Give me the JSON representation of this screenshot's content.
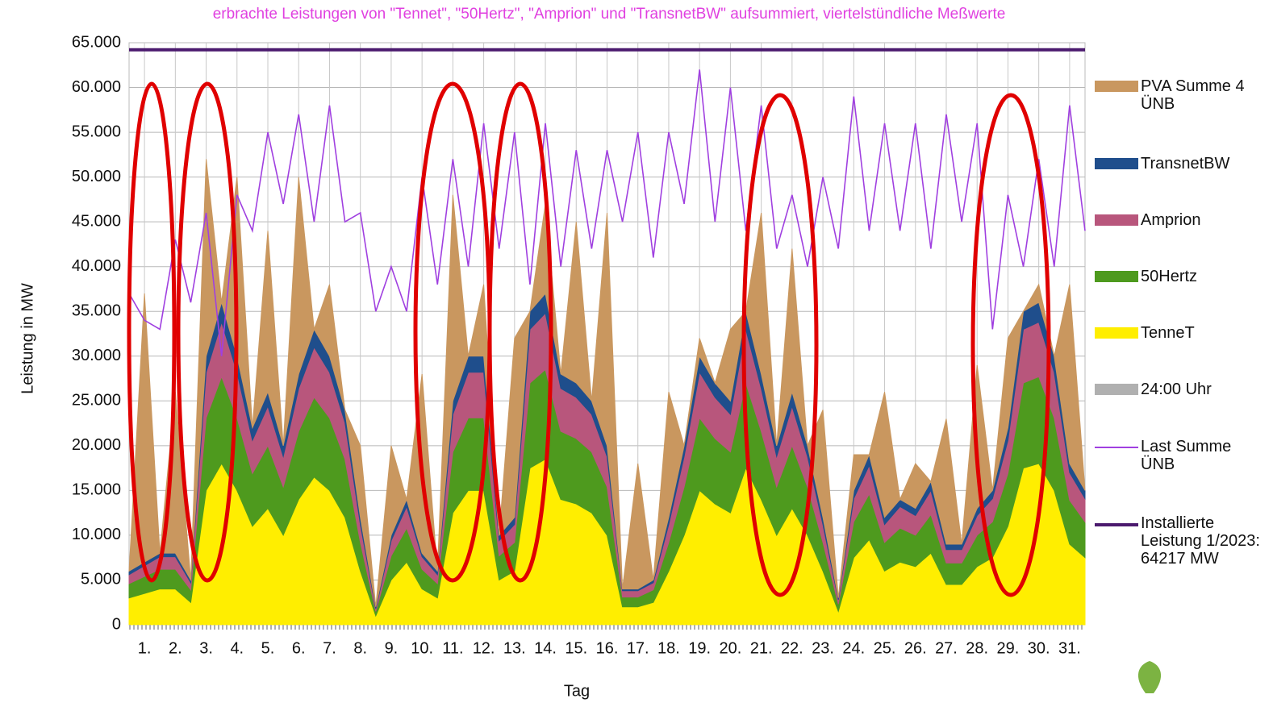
{
  "chart_data": {
    "type": "stacked-area",
    "title": "erbrachte Leistungen von \"Tennet\", \"50Hertz\", \"Amprion\" und \"TransnetBW\" aufsummiert, viertelstündliche Meßwerte",
    "y_label": "Leistung in MW",
    "x_label": "Tag",
    "x": [
      0.5,
      1,
      1.5,
      2,
      2.5,
      3,
      3.5,
      4,
      4.5,
      5,
      5.5,
      6,
      6.5,
      7,
      7.5,
      8,
      8.5,
      9,
      9.5,
      10,
      10.5,
      11,
      11.5,
      12,
      12.5,
      13,
      13.5,
      14,
      14.5,
      15,
      15.5,
      16,
      16.5,
      17,
      17.5,
      18,
      18.5,
      19,
      19.5,
      20,
      20.5,
      21,
      21.5,
      22,
      22.5,
      23,
      23.5,
      24,
      24.5,
      25,
      25.5,
      26,
      26.5,
      27,
      27.5,
      28,
      28.5,
      29,
      29.5,
      30,
      30.5,
      31,
      31.5
    ],
    "xlim": [
      0.5,
      31.5
    ],
    "xticks": [
      {
        "value": 1,
        "label": "1."
      },
      {
        "value": 2,
        "label": "2."
      },
      {
        "value": 3,
        "label": "3."
      },
      {
        "value": 4,
        "label": "4."
      },
      {
        "value": 5,
        "label": "5."
      },
      {
        "value": 6,
        "label": "6."
      },
      {
        "value": 7,
        "label": "7."
      },
      {
        "value": 8,
        "label": "8."
      },
      {
        "value": 9,
        "label": "9."
      },
      {
        "value": 10,
        "label": "10."
      },
      {
        "value": 11,
        "label": "11."
      },
      {
        "value": 12,
        "label": "12."
      },
      {
        "value": 13,
        "label": "13."
      },
      {
        "value": 14,
        "label": "14."
      },
      {
        "value": 15,
        "label": "15."
      },
      {
        "value": 16,
        "label": "16."
      },
      {
        "value": 17,
        "label": "17."
      },
      {
        "value": 18,
        "label": "18."
      },
      {
        "value": 19,
        "label": "19."
      },
      {
        "value": 20,
        "label": "20."
      },
      {
        "value": 21,
        "label": "21."
      },
      {
        "value": 22,
        "label": "22."
      },
      {
        "value": 23,
        "label": "23."
      },
      {
        "value": 24,
        "label": "24."
      },
      {
        "value": 25,
        "label": "25."
      },
      {
        "value": 26,
        "label": "26."
      },
      {
        "value": 27,
        "label": "27."
      },
      {
        "value": 28,
        "label": "28."
      },
      {
        "value": 29,
        "label": "29."
      },
      {
        "value": 30,
        "label": "30."
      },
      {
        "value": 31,
        "label": "31."
      }
    ],
    "ylim": [
      0,
      65000
    ],
    "yticks": [
      0,
      {
        "value": 5000,
        "label": "5.000"
      },
      {
        "value": 10000,
        "label": "10.000"
      },
      {
        "value": 15000,
        "label": "15.000"
      },
      {
        "value": 20000,
        "label": "20.000"
      },
      {
        "value": 25000,
        "label": "25.000"
      },
      {
        "value": 30000,
        "label": "30.000"
      },
      {
        "value": 35000,
        "label": "35.000"
      },
      {
        "value": 40000,
        "label": "40.000"
      },
      {
        "value": 45000,
        "label": "45.000"
      },
      {
        "value": 50000,
        "label": "50.000"
      },
      {
        "value": 55000,
        "label": "55.000"
      },
      {
        "value": 60000,
        "label": "60.000"
      },
      {
        "value": 65000,
        "label": "65.000"
      }
    ],
    "grid": true,
    "series": [
      {
        "name": "PVA Summe 4 ÜNB",
        "type": "area",
        "color": "#c9975f",
        "values": [
          0,
          30000,
          0,
          18000,
          0,
          22000,
          0,
          20000,
          0,
          18000,
          0,
          22000,
          0,
          8000,
          0,
          8000,
          0,
          10000,
          0,
          20000,
          0,
          23000,
          0,
          8000,
          0,
          20000,
          0,
          10000,
          0,
          18000,
          0,
          26000,
          0,
          14000,
          0,
          14000,
          0,
          2000,
          0,
          8000,
          0,
          18000,
          0,
          16000,
          0,
          12000,
          0,
          4000,
          0,
          14000,
          0,
          5000,
          0,
          14000,
          0,
          16000,
          0,
          10000,
          0,
          2000,
          0,
          20000,
          0
        ]
      },
      {
        "name": "TransnetBW",
        "type": "area",
        "color": "#1f4e8c",
        "values": [
          400,
          400,
          400,
          400,
          300,
          1800,
          2200,
          1800,
          1400,
          1600,
          1200,
          1600,
          2000,
          1800,
          1400,
          800,
          200,
          600,
          800,
          400,
          400,
          1500,
          1800,
          1800,
          600,
          800,
          2000,
          2200,
          1600,
          1600,
          1500,
          1200,
          200,
          200,
          300,
          800,
          1200,
          1800,
          1600,
          1500,
          2000,
          1600,
          1200,
          1600,
          1200,
          800,
          200,
          900,
          1200,
          800,
          800,
          800,
          1000,
          600,
          600,
          800,
          900,
          1400,
          2000,
          2200,
          1800,
          1000,
          900
        ]
      },
      {
        "name": "Amprion",
        "type": "area",
        "color": "#b8567c",
        "values": [
          1000,
          1200,
          1400,
          1400,
          800,
          5100,
          6100,
          5100,
          3700,
          4400,
          3400,
          4800,
          5600,
          5100,
          4100,
          2000,
          300,
          1700,
          2400,
          1400,
          1000,
          4200,
          5100,
          5100,
          1700,
          2000,
          6000,
          6300,
          4800,
          4600,
          4200,
          3400,
          700,
          700,
          800,
          2000,
          3400,
          5100,
          4600,
          4200,
          6000,
          4800,
          3400,
          4400,
          3400,
          2000,
          500,
          2600,
          3200,
          2000,
          2400,
          2200,
          2700,
          1500,
          1500,
          2200,
          2600,
          3700,
          6000,
          6100,
          5100,
          3100,
          2600
        ]
      },
      {
        "name": "50Hertz",
        "type": "area",
        "color": "#4e9a1e",
        "values": [
          1600,
          1900,
          2200,
          2200,
          1400,
          8100,
          9700,
          8100,
          5900,
          7000,
          5400,
          7600,
          8900,
          8100,
          6500,
          3200,
          500,
          2700,
          3800,
          2200,
          1600,
          6800,
          8100,
          8100,
          2700,
          3200,
          9500,
          10000,
          7600,
          7300,
          6800,
          5400,
          1100,
          1100,
          1400,
          3200,
          5400,
          8100,
          7300,
          6800,
          9500,
          7600,
          5400,
          7000,
          5400,
          3200,
          800,
          4000,
          5100,
          3200,
          3800,
          3500,
          4300,
          2400,
          2400,
          3500,
          4000,
          5900,
          9500,
          9700,
          8100,
          4900,
          4000
        ]
      },
      {
        "name": "TenneT",
        "type": "area",
        "color": "#ffee00",
        "values": [
          3000,
          3500,
          4000,
          4000,
          2500,
          15000,
          18000,
          15000,
          11000,
          13000,
          10000,
          14000,
          16500,
          15000,
          12000,
          6000,
          1000,
          5000,
          7000,
          4000,
          3000,
          12500,
          15000,
          15000,
          5000,
          6000,
          17500,
          18500,
          14000,
          13500,
          12500,
          10000,
          2000,
          2000,
          2500,
          6000,
          10000,
          15000,
          13500,
          12500,
          17500,
          14000,
          10000,
          13000,
          10000,
          6000,
          1500,
          7500,
          9500,
          6000,
          7000,
          6500,
          8000,
          4500,
          4500,
          6500,
          7500,
          11000,
          17500,
          18000,
          15000,
          9000,
          7500
        ]
      },
      {
        "name": "24:00 Uhr",
        "type": "marker",
        "color": "#b0b0b0"
      },
      {
        "name": "Last Summe ÜNB",
        "type": "line",
        "color": "#a040e0",
        "values": [
          37000,
          34000,
          33000,
          43000,
          36000,
          46000,
          30000,
          48000,
          44000,
          55000,
          47000,
          57000,
          45000,
          58000,
          45000,
          46000,
          35000,
          40000,
          35000,
          50000,
          38000,
          52000,
          40000,
          56000,
          42000,
          55000,
          38000,
          56000,
          40000,
          53000,
          42000,
          53000,
          45000,
          55000,
          41000,
          55000,
          47000,
          62000,
          45000,
          60000,
          44000,
          58000,
          42000,
          48000,
          40000,
          50000,
          42000,
          59000,
          44000,
          56000,
          44000,
          56000,
          42000,
          57000,
          45000,
          56000,
          33000,
          48000,
          40000,
          52000,
          40000,
          58000,
          44000
        ]
      },
      {
        "name": "Installierte Leistung 1/2023: 64217 MW",
        "type": "hline",
        "color": "#4b1a6e",
        "value": 64217
      }
    ]
  }
}
